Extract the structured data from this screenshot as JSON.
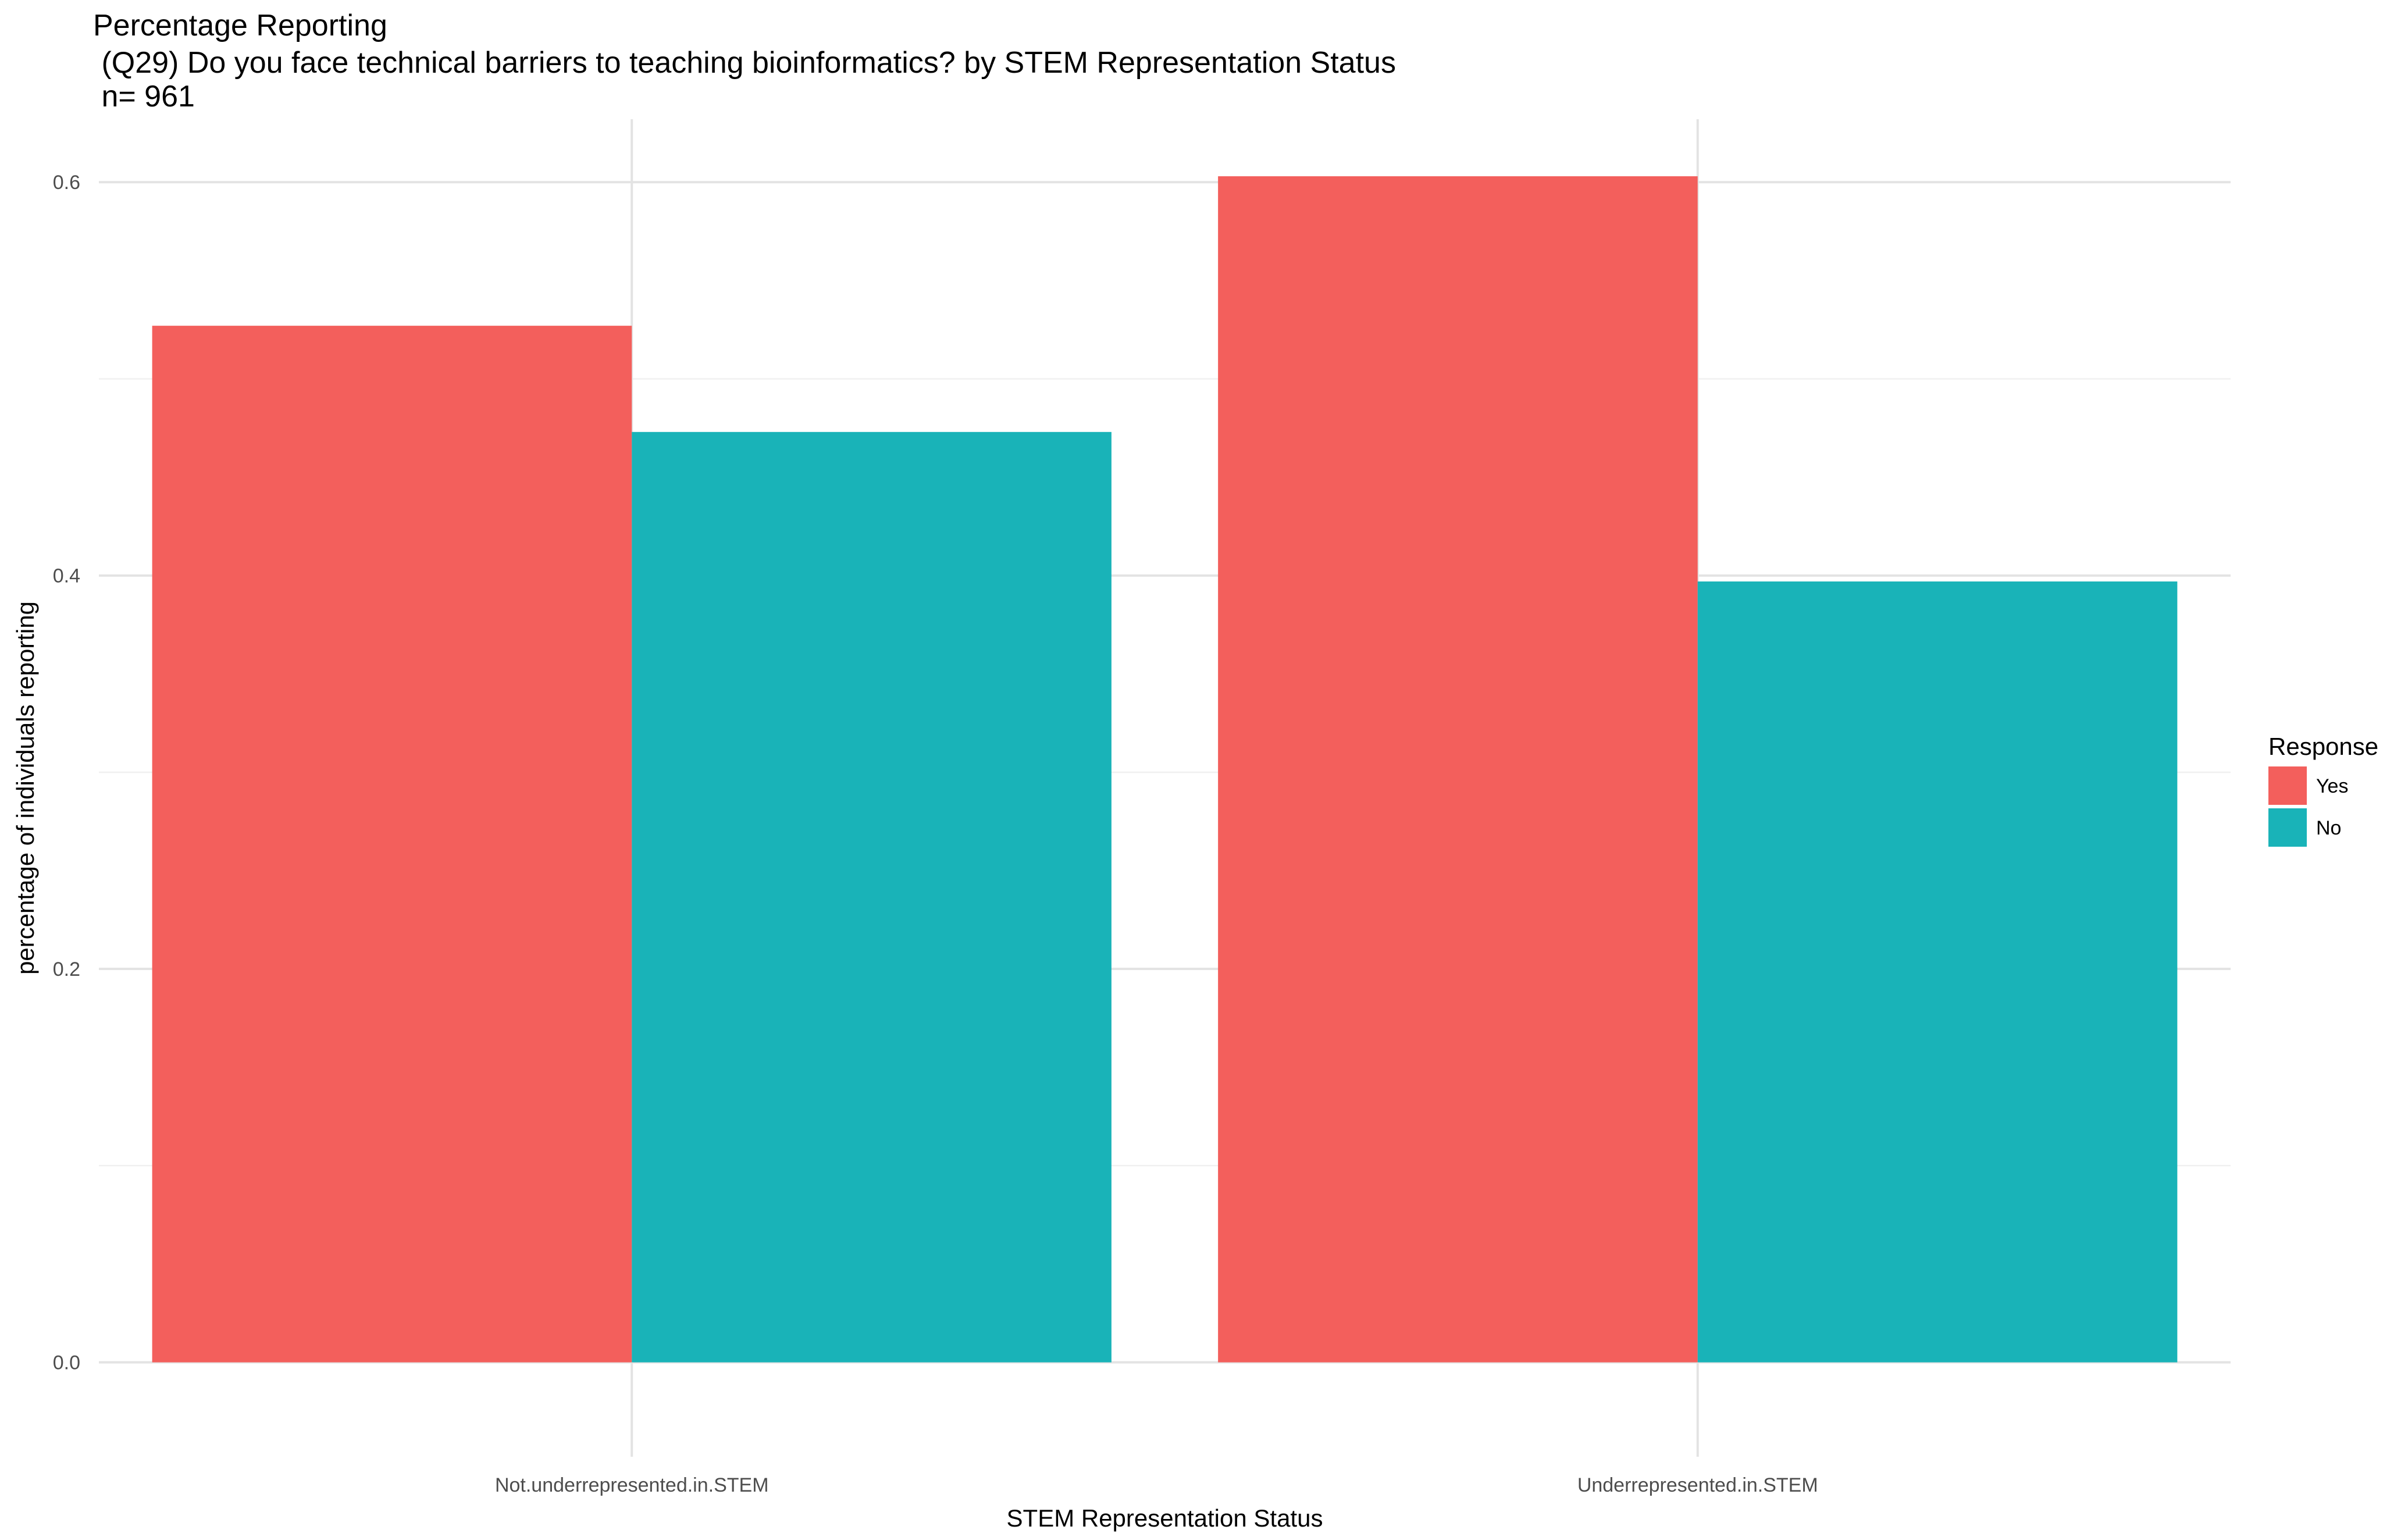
{
  "chart_data": {
    "type": "bar",
    "title_lines": [
      "Percentage Reporting",
      " (Q29) Do you face technical barriers to teaching bioinformatics? by STEM Representation Status",
      " n= 961"
    ],
    "xlabel": "STEM Representation Status",
    "ylabel": "percentage of individuals reporting",
    "categories": [
      "Not.underrepresented.in.STEM",
      "Underrepresented.in.STEM"
    ],
    "series": [
      {
        "name": "Yes",
        "color": "#F35F5C",
        "values": [
          0.527,
          0.603
        ]
      },
      {
        "name": "No",
        "color": "#19B3B8",
        "values": [
          0.473,
          0.397
        ]
      }
    ],
    "ylim": [
      -0.048,
      0.632
    ],
    "yticks": [
      {
        "value": 0.0,
        "label": "0.0"
      },
      {
        "value": 0.2,
        "label": "0.2"
      },
      {
        "value": 0.4,
        "label": "0.4"
      },
      {
        "value": 0.6,
        "label": "0.6"
      }
    ],
    "minor_yticks": [
      0.1,
      0.3,
      0.5
    ],
    "grid": true,
    "legend": {
      "title": "Response",
      "position": "right"
    }
  }
}
